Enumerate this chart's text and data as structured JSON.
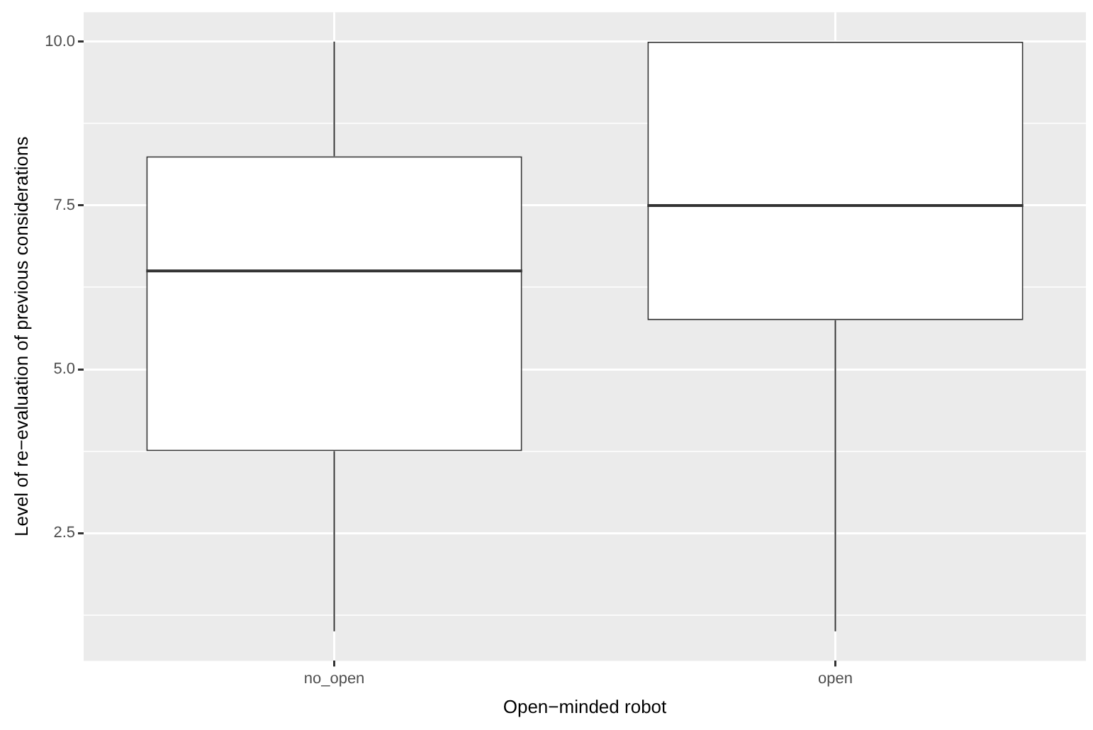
{
  "chart_data": {
    "type": "box",
    "xlabel": "Open−minded robot",
    "ylabel": "Level of re−evaluation of previous considerations",
    "categories": [
      "no_open",
      "open"
    ],
    "boxes": [
      {
        "low": 1,
        "q1": 3.75,
        "median": 6.5,
        "q3": 8.25,
        "high": 10
      },
      {
        "low": 1,
        "q1": 5.75,
        "median": 7.5,
        "q3": 10,
        "high": 10
      }
    ],
    "ylim": [
      0.55,
      10.45
    ],
    "yticks": [
      {
        "value": 1.25,
        "label": null
      },
      2.5,
      {
        "value": 3.75,
        "label": null
      },
      {
        "value": 5,
        "label": "5.0"
      },
      {
        "value": 6.25,
        "label": null
      },
      7.5,
      {
        "value": 8.75,
        "label": null
      },
      {
        "value": 10,
        "label": "10.0"
      }
    ],
    "grid": true
  }
}
